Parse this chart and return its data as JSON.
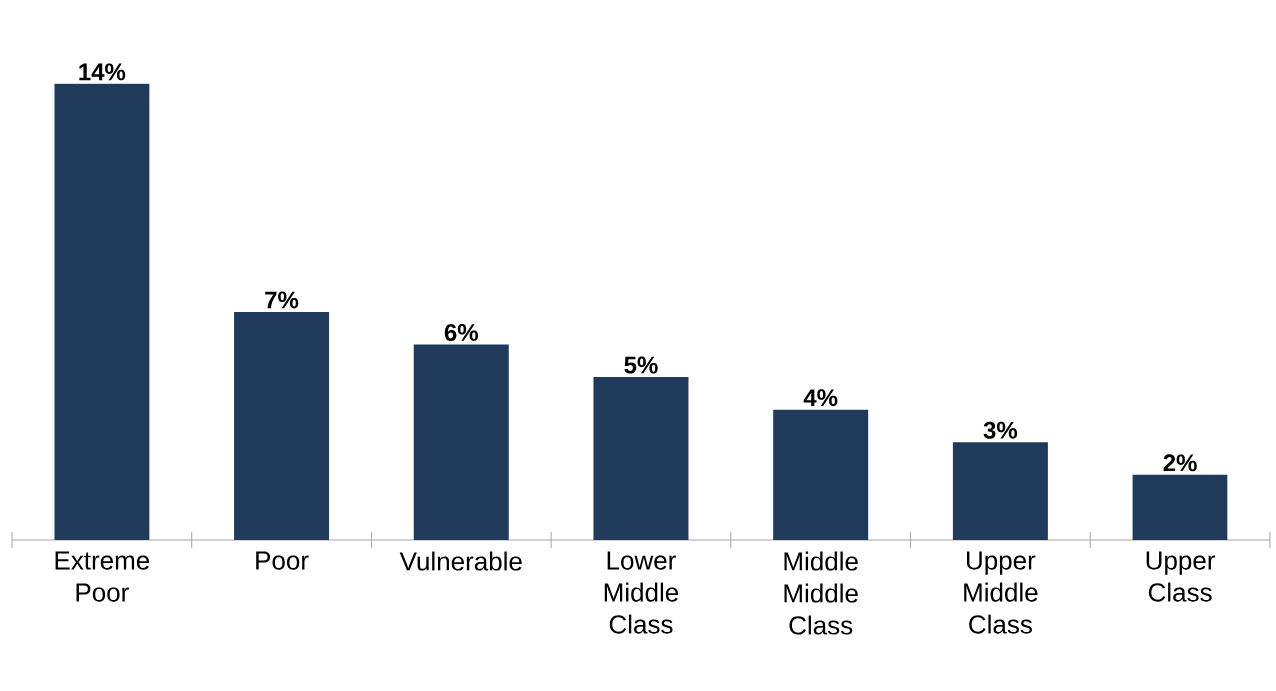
{
  "chart_data": {
    "type": "bar",
    "categories": [
      "Extreme Poor",
      "Poor",
      "Vulnerable",
      "Lower Middle Class",
      "Middle Middle Class",
      "Upper Middle Class",
      "Upper Class"
    ],
    "values": [
      14,
      7,
      6,
      5,
      4,
      3,
      2
    ],
    "value_labels": [
      "14%",
      "7%",
      "6%",
      "5%",
      "4%",
      "3%",
      "2%"
    ],
    "color": "#203a5c"
  }
}
